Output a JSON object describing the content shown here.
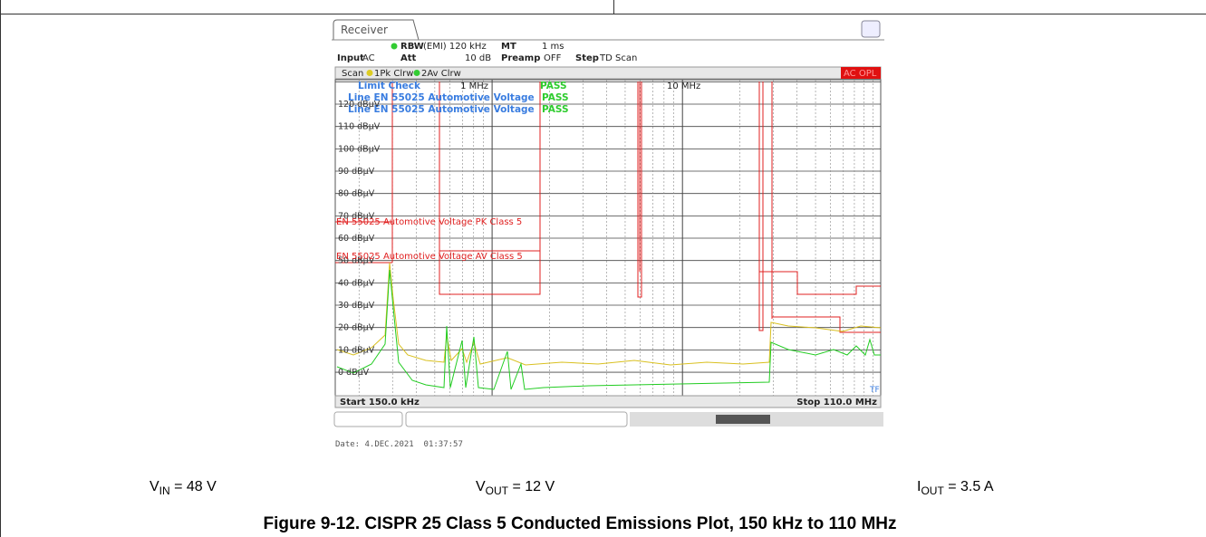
{
  "receiver": {
    "tab": "Receiver",
    "header": {
      "rbw_label": "RBW",
      "rbw_value": "(EMI) 120 kHz",
      "mt_label": "MT",
      "mt_value": "1 ms",
      "input_label": "Input",
      "input_value": "AC",
      "att_label": "Att",
      "att_value": "10 dB",
      "preamp_label": "Preamp",
      "preamp_value": "OFF",
      "step_label": "Step",
      "step_value": "TD Scan"
    },
    "scan": {
      "label": "Scan",
      "trace1": "1Pk Clrw",
      "trace2": "2Av Clrw",
      "status": "AC OPL"
    },
    "limit_check": {
      "title": "Limit Check",
      "title_result": "PASS",
      "lines": [
        {
          "name": "Line EN 55025 Automotive Voltage",
          "result": "PASS"
        },
        {
          "name": "Line EN 55025 Automotive Voltage",
          "result": "PASS"
        }
      ]
    },
    "x_labels": [
      "1 MHz",
      "10 MHz"
    ],
    "y_labels": [
      "120 dBµV",
      "110 dBµV",
      "100 dBµV",
      "90 dBµV",
      "80 dBµV",
      "70 dBµV",
      "60 dBµV",
      "50 dBµV",
      "40 dBµV",
      "30 dBµV",
      "20 dBµV",
      "10 dBµV",
      "0 dBµV"
    ],
    "limit_labels": [
      "EN 55025 Automotive Voltage PK Class 5",
      "EN 55025 Automotive Voltage AV Class 5"
    ],
    "marker": "TF",
    "start": "Start 150.0 kHz",
    "stop": "Stop 110.0 MHz",
    "date": "Date: 4.DEC.2021  01:37:57"
  },
  "conditions": [
    {
      "symbol": "V",
      "subscript": "IN",
      "value": " = 48 V"
    },
    {
      "symbol": "V",
      "subscript": "OUT",
      "value": " = 12 V"
    },
    {
      "symbol": "I",
      "subscript": "OUT",
      "value": " = 3.5 A"
    }
  ],
  "caption": "Figure 9-12. CISPR 25 Class 5 Conducted Emissions Plot, 150 kHz to 110 MHz"
}
